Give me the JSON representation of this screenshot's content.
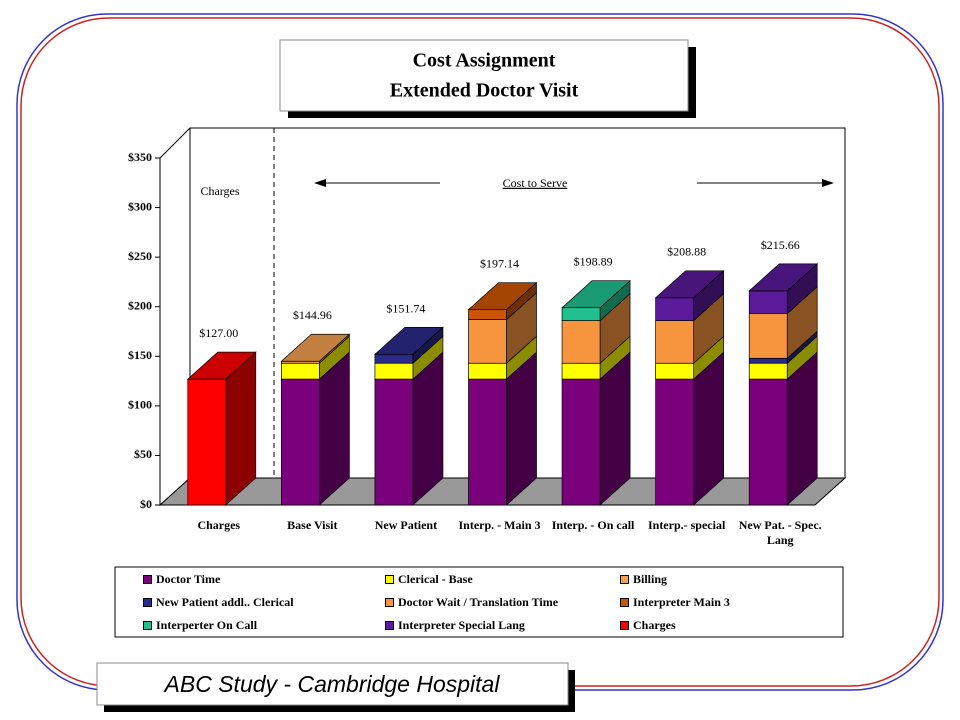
{
  "chart_data": {
    "type": "stacked-bar-3d",
    "title": "Cost Assignment",
    "subtitle": "Extended Doctor Visit",
    "footer": "ABC Study - Cambridge Hospital",
    "annotations": {
      "charges": "Charges",
      "cost_to_serve": "Cost to Serve"
    },
    "categories": [
      "Charges",
      "Base Visit",
      "New Patient",
      "Interp. - Main 3",
      "Interp. - On call",
      "Interp.- special",
      "New Pat. - Spec. Lang"
    ],
    "series": [
      {
        "name": "Doctor Time",
        "color": "#7b007b",
        "values": [
          null,
          127,
          127,
          127,
          127,
          127,
          127
        ]
      },
      {
        "name": "Clerical - Base",
        "color": "#ffff00",
        "values": [
          null,
          16,
          16,
          16,
          16,
          16,
          16
        ]
      },
      {
        "name": "Billing",
        "color": "#f4a050",
        "values": [
          null,
          2,
          null,
          null,
          null,
          null,
          null
        ]
      },
      {
        "name": "New Patient addl.. Clerical",
        "color": "#2a2a8a",
        "values": [
          null,
          null,
          9,
          null,
          null,
          null,
          5
        ]
      },
      {
        "name": "Doctor Wait / Translation Time",
        "color": "#f7953f",
        "values": [
          null,
          null,
          null,
          44,
          43,
          43,
          45
        ]
      },
      {
        "name": "Interpreter Main 3",
        "color": "#cc5500",
        "values": [
          null,
          null,
          null,
          10,
          null,
          null,
          null
        ]
      },
      {
        "name": "Interperter On Call",
        "color": "#20c090",
        "values": [
          null,
          null,
          null,
          null,
          13,
          null,
          null
        ]
      },
      {
        "name": "Interpreter Special Lang",
        "color": "#5a1a9a",
        "values": [
          null,
          null,
          null,
          null,
          null,
          23,
          23
        ]
      },
      {
        "name": "Charges",
        "color": "#ff0000",
        "values": [
          127,
          null,
          null,
          null,
          null,
          null,
          null
        ]
      }
    ],
    "totals": {
      "values": [
        127.0,
        144.96,
        151.74,
        197.14,
        198.89,
        208.88,
        215.66
      ],
      "value_labels": [
        "$127.00",
        "$144.96",
        "$151.74",
        "$197.14",
        "$198.89",
        "$208.88",
        "$215.66"
      ]
    },
    "ylim": [
      0,
      350
    ],
    "yticks": [
      {
        "value": 0,
        "label": "$0"
      },
      {
        "value": 50,
        "label": "$50"
      },
      {
        "value": 100,
        "label": "$100"
      },
      {
        "value": 150,
        "label": "$150"
      },
      {
        "value": 200,
        "label": "$200"
      },
      {
        "value": 250,
        "label": "$250"
      },
      {
        "value": 300,
        "label": "$300"
      },
      {
        "value": 350,
        "label": "$350"
      }
    ]
  }
}
